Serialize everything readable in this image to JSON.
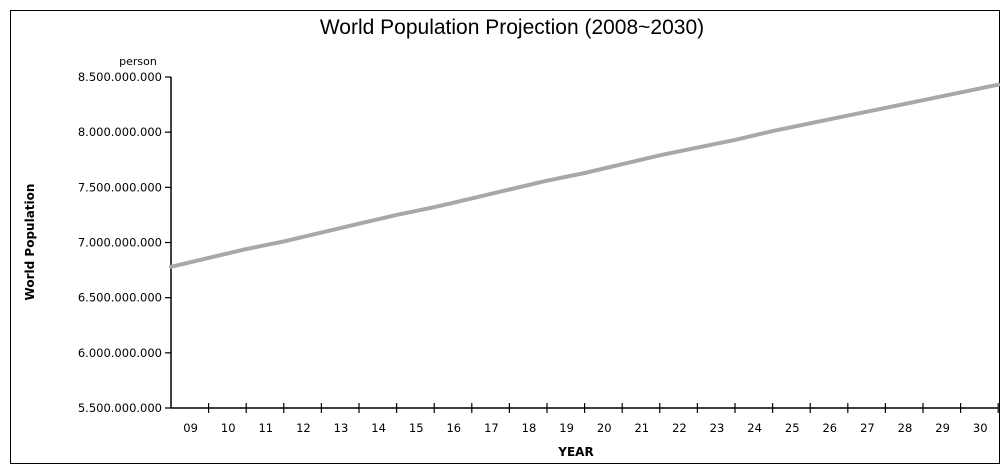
{
  "chart_data": {
    "type": "line",
    "title": "World Population Projection (2008~2030)",
    "xlabel": "YEAR",
    "ylabel": "World Population",
    "yunit": "person",
    "x_tick_labels": [
      "09",
      "10",
      "11",
      "12",
      "13",
      "14",
      "15",
      "16",
      "17",
      "18",
      "19",
      "20",
      "21",
      "22",
      "23",
      "24",
      "25",
      "26",
      "27",
      "28",
      "29",
      "30"
    ],
    "y_tick_labels": [
      "5.500.000.000",
      "6.000.000.000",
      "6.500.000.000",
      "7.000.000.000",
      "7.500.000.000",
      "8.000.000.000",
      "8.500.000.000"
    ],
    "y_ticks": [
      5500000000,
      6000000000,
      6500000000,
      7000000000,
      7500000000,
      8000000000,
      8500000000
    ],
    "ylim": [
      5500000000,
      8500000000
    ],
    "xlim": [
      2008,
      2030
    ],
    "grid": false,
    "legend": "none",
    "series": [
      {
        "color": "#a8a8a8",
        "x": [
          2008,
          2009,
          2010,
          2011,
          2012,
          2013,
          2014,
          2015,
          2016,
          2017,
          2018,
          2019,
          2020,
          2021,
          2022,
          2023,
          2024,
          2025,
          2026,
          2027,
          2028,
          2029,
          2030
        ],
        "y": [
          6780000000,
          6860000000,
          6940000000,
          7010000000,
          7090000000,
          7170000000,
          7250000000,
          7320000000,
          7400000000,
          7480000000,
          7560000000,
          7630000000,
          7710000000,
          7790000000,
          7860000000,
          7930000000,
          8010000000,
          8080000000,
          8150000000,
          8220000000,
          8290000000,
          8360000000,
          8430000000
        ]
      }
    ]
  }
}
